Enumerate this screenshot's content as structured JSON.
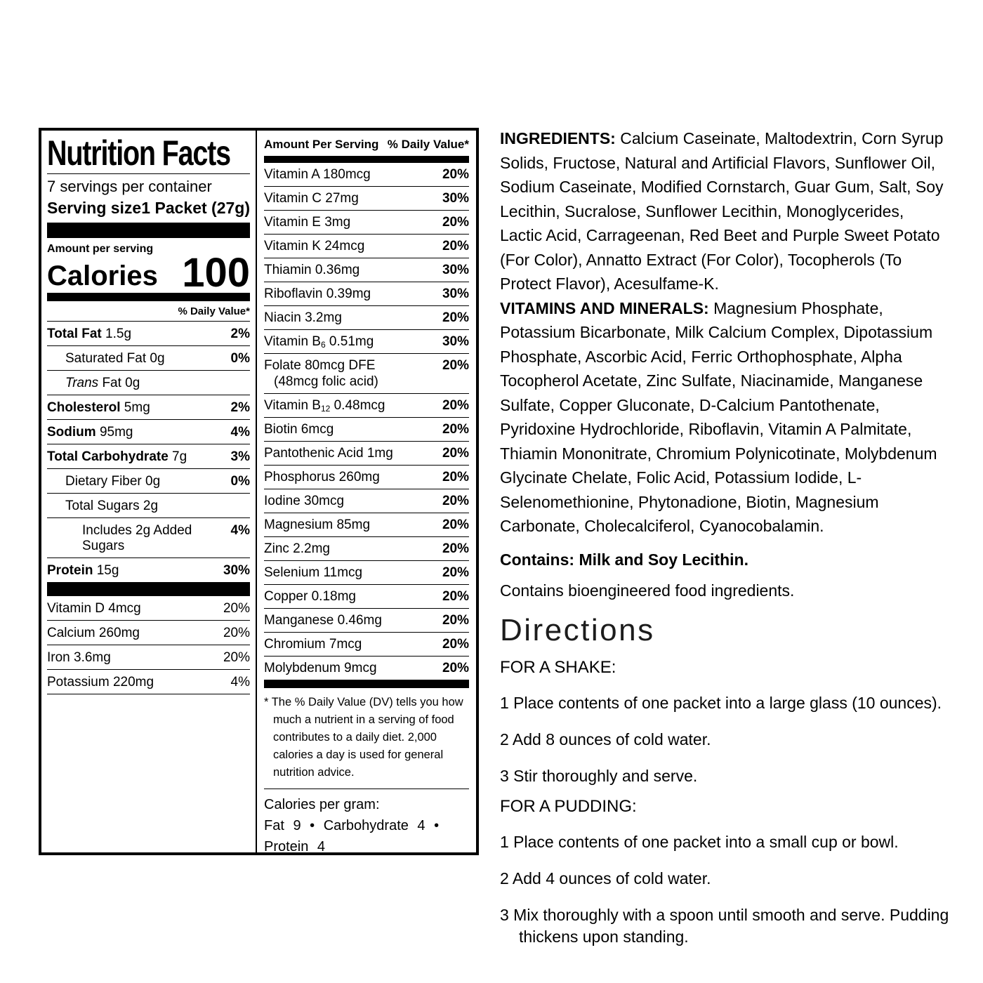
{
  "label": {
    "title": "Nutrition Facts",
    "servings_per_container": "7 servings per container",
    "serving_size_label": "Serving size",
    "serving_size_value": "1 Packet (27g)",
    "amount_per_serving": "Amount per serving",
    "calories_label": "Calories",
    "calories_value": "100",
    "daily_value_header": "% Daily Value*",
    "nutrients": [
      {
        "bold": "Total Fat",
        "italic": "",
        "text": " 1.5g",
        "pct": "2%",
        "indent": 0
      },
      {
        "bold": "",
        "italic": "",
        "text": "Saturated Fat 0g",
        "pct": "0%",
        "indent": 1
      },
      {
        "bold": "",
        "italic": "Trans",
        "text": " Fat 0g",
        "pct": "",
        "indent": 1
      },
      {
        "bold": "Cholesterol",
        "italic": "",
        "text": " 5mg",
        "pct": "2%",
        "indent": 0
      },
      {
        "bold": "Sodium",
        "italic": "",
        "text": " 95mg",
        "pct": "4%",
        "indent": 0
      },
      {
        "bold": "Total Carbohydrate",
        "italic": "",
        "text": " 7g",
        "pct": "3%",
        "indent": 0
      },
      {
        "bold": "",
        "italic": "",
        "text": "Dietary Fiber 0g",
        "pct": "0%",
        "indent": 1
      },
      {
        "bold": "",
        "italic": "",
        "text": "Total Sugars 2g",
        "pct": "",
        "indent": 1
      },
      {
        "bold": "",
        "italic": "",
        "text": "Includes 2g Added Sugars",
        "pct": "4%",
        "indent": 2
      },
      {
        "bold": "Protein",
        "italic": "",
        "text": " 15g",
        "pct": "30%",
        "indent": 0
      }
    ],
    "micronutrients": [
      {
        "name": "Vitamin D 4mcg",
        "pct": "20%"
      },
      {
        "name": "Calcium 260mg",
        "pct": "20%"
      },
      {
        "name": "Iron 3.6mg",
        "pct": "20%"
      },
      {
        "name": "Potassium 220mg",
        "pct": "4%"
      }
    ],
    "vitamins_header_left": "Amount Per Serving",
    "vitamins_header_right": "% Daily Value*",
    "vitamins": [
      {
        "pre": "Vitamin A 180mcg",
        "sub": "",
        "post": "",
        "line2": "",
        "pct": "20%"
      },
      {
        "pre": "Vitamin C 27mg",
        "sub": "",
        "post": "",
        "line2": "",
        "pct": "30%"
      },
      {
        "pre": "Vitamin E 3mg",
        "sub": "",
        "post": "",
        "line2": "",
        "pct": "20%"
      },
      {
        "pre": "Vitamin K 24mcg",
        "sub": "",
        "post": "",
        "line2": "",
        "pct": "20%"
      },
      {
        "pre": "Thiamin 0.36mg",
        "sub": "",
        "post": "",
        "line2": "",
        "pct": "30%"
      },
      {
        "pre": "Riboflavin 0.39mg",
        "sub": "",
        "post": "",
        "line2": "",
        "pct": "30%"
      },
      {
        "pre": "Niacin 3.2mg",
        "sub": "",
        "post": "",
        "line2": "",
        "pct": "20%"
      },
      {
        "pre": "Vitamin B",
        "sub": "6",
        "post": " 0.51mg",
        "line2": "",
        "pct": "30%"
      },
      {
        "pre": "Folate 80mcg DFE",
        "sub": "",
        "post": "",
        "line2": "(48mcg folic acid)",
        "pct": "20%"
      },
      {
        "pre": "Vitamin B",
        "sub": "12",
        "post": " 0.48mcg",
        "line2": "",
        "pct": "20%"
      },
      {
        "pre": "Biotin 6mcg",
        "sub": "",
        "post": "",
        "line2": "",
        "pct": "20%"
      },
      {
        "pre": "Pantothenic Acid 1mg",
        "sub": "",
        "post": "",
        "line2": "",
        "pct": "20%"
      },
      {
        "pre": "Phosphorus 260mg",
        "sub": "",
        "post": "",
        "line2": "",
        "pct": "20%"
      },
      {
        "pre": "Iodine 30mcg",
        "sub": "",
        "post": "",
        "line2": "",
        "pct": "20%"
      },
      {
        "pre": "Magnesium 85mg",
        "sub": "",
        "post": "",
        "line2": "",
        "pct": "20%"
      },
      {
        "pre": "Zinc 2.2mg",
        "sub": "",
        "post": "",
        "line2": "",
        "pct": "20%"
      },
      {
        "pre": "Selenium 11mcg",
        "sub": "",
        "post": "",
        "line2": "",
        "pct": "20%"
      },
      {
        "pre": "Copper 0.18mg",
        "sub": "",
        "post": "",
        "line2": "",
        "pct": "20%"
      },
      {
        "pre": "Manganese 0.46mg",
        "sub": "",
        "post": "",
        "line2": "",
        "pct": "20%"
      },
      {
        "pre": "Chromium 7mcg",
        "sub": "",
        "post": "",
        "line2": "",
        "pct": "20%"
      },
      {
        "pre": "Molybdenum 9mcg",
        "sub": "",
        "post": "",
        "line2": "",
        "pct": "20%"
      }
    ],
    "footnote": "* The % Daily Value (DV) tells you how much a nutrient in a serving of food contributes to a daily diet. 2,000 calories a day is used for general nutrition advice.",
    "calories_per_gram_title": "Calories per gram:",
    "calories_per_gram_values": "Fat 9 • Carbohydrate 4 • Protein 4"
  },
  "right": {
    "ingredients_label": "INGREDIENTS:",
    "ingredients_text": "Calcium Caseinate, Maltodextrin, Corn Syrup Solids, Fructose, Natural and Artificial Flavors, Sunflower Oil, Sodium Caseinate, Modified Cornstarch, Guar Gum, Salt, Soy Lecithin, Sucralose, Sunflower Lecithin, Monoglycerides, Lactic Acid, Carrageenan, Red Beet and Purple Sweet Potato (For Color), Annatto Extract (For Color), Tocopherols (To Protect Flavor), Acesulfame-K.",
    "vitamins_minerals_label": "VITAMINS AND MINERALS:",
    "vitamins_minerals_text": "Magnesium Phosphate, Potassium Bicarbonate, Milk Calcium Complex, Dipotassium Phosphate, Ascorbic Acid, Ferric Orthophosphate, Alpha Tocopherol Acetate, Zinc Sulfate, Niacinamide, Manganese Sulfate, Copper Gluconate, D-Calcium Pantothenate, Pyridoxine Hydrochloride, Riboflavin, Vitamin A Palmitate, Thiamin Mononitrate, Chromium Polynicotinate, Molybdenum Glycinate Chelate, Folic Acid, Potassium Iodide, L-Selenomethionine, Phytonadione, Biotin, Magnesium Carbonate, Cholecalciferol, Cyanocobalamin.",
    "contains_statement": "Contains: Milk and Soy Lecithin.",
    "bioengineered_statement": "Contains bioengineered food ingredients.",
    "directions_title": "Directions",
    "shake_header": "FOR A SHAKE:",
    "shake_steps": [
      "1 Place contents of one packet into a large glass (10 ounces).",
      "2 Add 8 ounces of cold water.",
      "3 Stir thoroughly and serve."
    ],
    "pudding_header": "FOR A PUDDING:",
    "pudding_steps": [
      "1 Place contents of one packet into a small cup or bowl.",
      "2 Add 4 ounces of cold water.",
      "3 Mix thoroughly with a spoon until smooth and serve. Pudding thickens upon standing."
    ]
  }
}
